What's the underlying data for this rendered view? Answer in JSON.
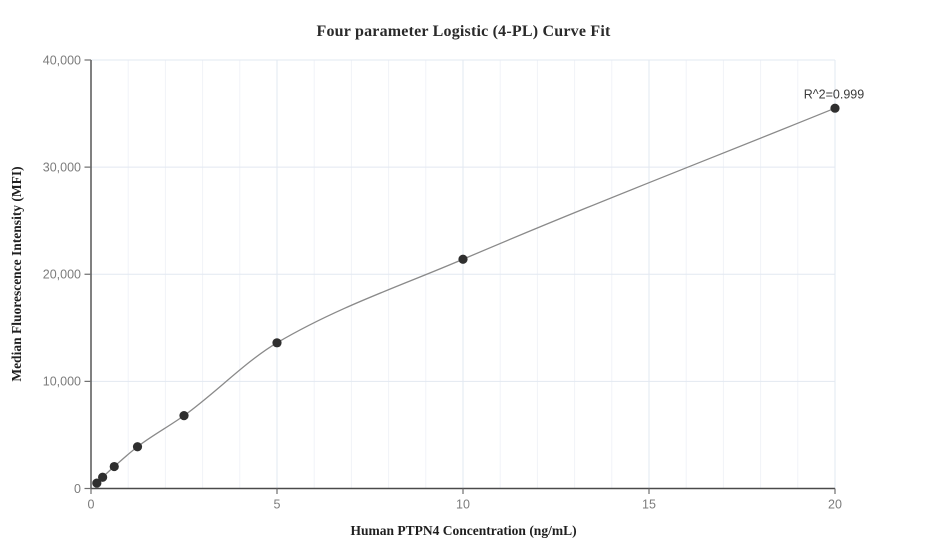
{
  "chart_data": {
    "type": "scatter",
    "title": "Four parameter Logistic (4-PL) Curve Fit",
    "xlabel": "Human PTPN4 Concentration (ng/mL)",
    "ylabel": "Median Fluorescence Intensity (MFI)",
    "x": [
      0.15625,
      0.3125,
      0.625,
      1.25,
      2.5,
      5,
      10,
      20
    ],
    "y": [
      500,
      1050,
      2050,
      3900,
      6800,
      13600,
      21400,
      35500
    ],
    "curve_fit": "4PL smooth curve through data points",
    "annotation": "R^2=0.999",
    "xlim": [
      0,
      20
    ],
    "ylim": [
      0,
      40000
    ],
    "xticks": [
      0,
      5,
      10,
      15,
      20
    ],
    "xtick_labels": [
      "0",
      "5",
      "10",
      "15",
      "20"
    ],
    "yticks": [
      0,
      10000,
      20000,
      30000,
      40000
    ],
    "ytick_labels": [
      "0",
      "10,000",
      "20,000",
      "30,000",
      "40,000"
    ],
    "x_minor_grid_step": 1,
    "grid": true,
    "legend": false,
    "colors": {
      "marker": "#2f2f2f",
      "curve": "#8a8a8a",
      "grid_major": "#e2e8f1",
      "grid_minor": "#f1f3f8",
      "axis": "#4a4a4a",
      "tick_mark": "#6e6e6e",
      "tick_text": "#7c7c7c",
      "annotation_text": "#3c3c3c"
    }
  }
}
